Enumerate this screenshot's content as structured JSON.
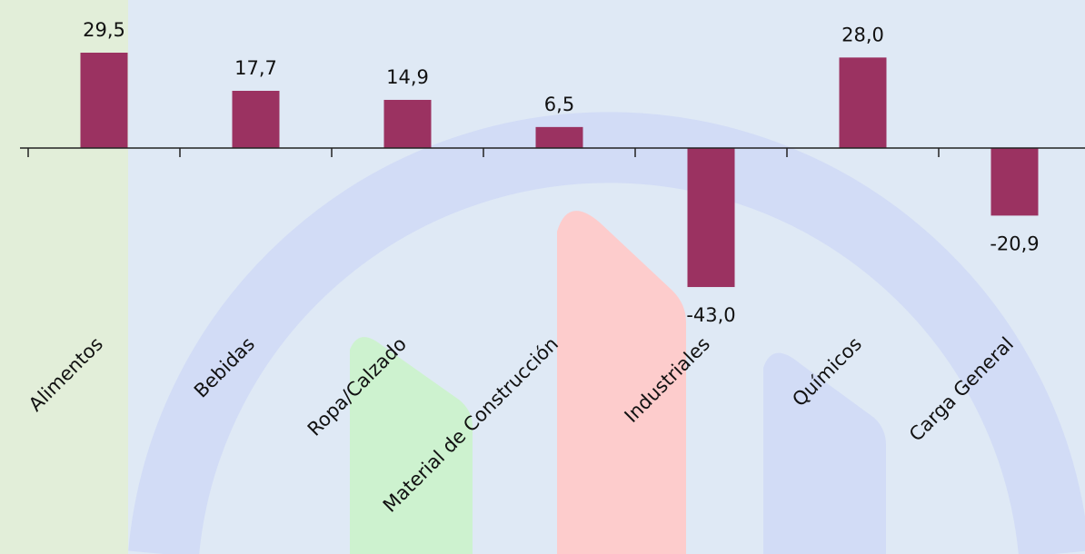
{
  "chart_data": {
    "type": "bar",
    "categories": [
      "Alimentos",
      "Bebidas",
      "Ropa/Calzado",
      "Material de Construcción",
      "Industriales",
      "Químicos",
      "Carga General"
    ],
    "values": [
      29.5,
      17.7,
      14.9,
      6.5,
      -43.0,
      28.0,
      -20.9
    ],
    "value_labels": [
      "29,5",
      "17,7",
      "14,9",
      "6,5",
      "-43,0",
      "28,0",
      "-20,9"
    ],
    "color": "#9b3261"
  }
}
